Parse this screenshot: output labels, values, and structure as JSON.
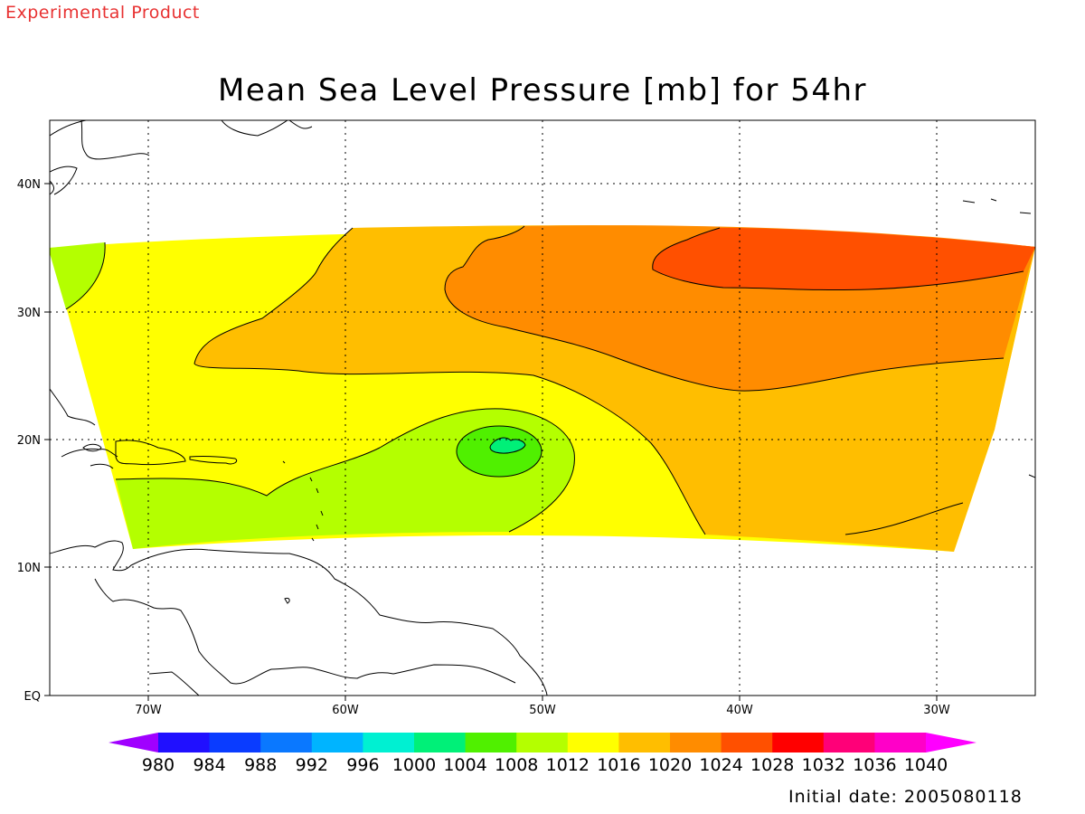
{
  "header": {
    "product_label": "Experimental Product",
    "title": "Mean Sea Level Pressure [mb] for 54hr"
  },
  "footer": {
    "initial_date": "Initial date: 2005080118"
  },
  "map": {
    "lat_ticks": [
      "EQ",
      "10N",
      "20N",
      "30N",
      "40N"
    ],
    "lon_ticks": [
      "70W",
      "60W",
      "50W",
      "40W",
      "30W"
    ],
    "grid": true,
    "colors": {
      "coastline": "#000000",
      "contour": "#000000"
    }
  },
  "legend": {
    "levels": [
      "980",
      "984",
      "988",
      "992",
      "996",
      "1000",
      "1004",
      "1008",
      "1012",
      "1016",
      "1020",
      "1024",
      "1028",
      "1032",
      "1036",
      "1040"
    ],
    "colors": [
      "#a000ff",
      "#2010ff",
      "#0a3cff",
      "#0a78ff",
      "#00b4ff",
      "#00f0d2",
      "#00f078",
      "#50f000",
      "#b4ff00",
      "#ffff00",
      "#ffbe00",
      "#ff8c00",
      "#ff5000",
      "#ff0000",
      "#ff0078",
      "#ff00c8",
      "#ff00ff"
    ]
  }
}
